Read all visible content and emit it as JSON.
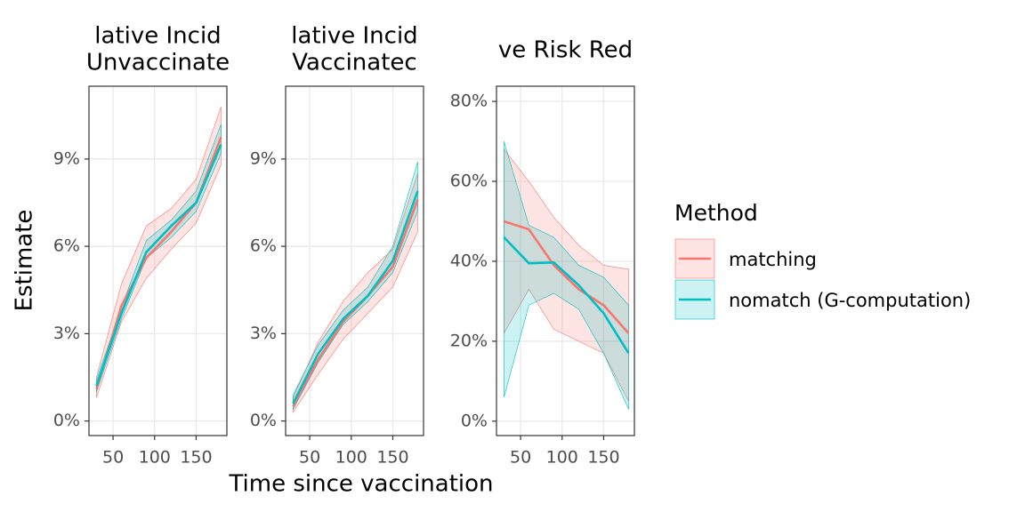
{
  "chart_data": [
    {
      "type": "line",
      "title": [
        "lative Incid",
        "Unvaccinate"
      ],
      "x": [
        30,
        60,
        90,
        120,
        150,
        180
      ],
      "xlim": [
        21,
        187
      ],
      "xticks": [
        50,
        100,
        150
      ],
      "ylim": [
        -0.5,
        11.5
      ],
      "yticks": [
        {
          "value": 0,
          "label": "0%"
        },
        {
          "value": 3,
          "label": "3%"
        },
        {
          "value": 6,
          "label": "6%"
        },
        {
          "value": 9,
          "label": "9%"
        }
      ],
      "grid": true,
      "series": [
        {
          "color": "#F8766D",
          "values": [
            1.1,
            3.95,
            5.6,
            6.5,
            7.5,
            9.75
          ],
          "lower": [
            0.8,
            3.4,
            4.9,
            5.9,
            6.8,
            8.8
          ],
          "upper": [
            1.5,
            4.7,
            6.7,
            7.3,
            8.3,
            10.8
          ]
        },
        {
          "color": "#00BFC4",
          "values": [
            1.2,
            3.7,
            5.8,
            6.7,
            7.5,
            9.5
          ],
          "lower": [
            1.0,
            3.5,
            5.6,
            6.3,
            7.2,
            9.2
          ],
          "upper": [
            1.4,
            3.9,
            6.2,
            6.9,
            7.9,
            10.2
          ]
        }
      ]
    },
    {
      "type": "line",
      "title": [
        "lative Incid",
        "Vaccinatec"
      ],
      "x": [
        30,
        60,
        90,
        120,
        150,
        180
      ],
      "xlim": [
        21,
        187
      ],
      "xticks": [
        50,
        100,
        150
      ],
      "ylim": [
        -0.5,
        11.5
      ],
      "yticks": [
        {
          "value": 0,
          "label": "0%"
        },
        {
          "value": 3,
          "label": "3%"
        },
        {
          "value": 6,
          "label": "6%"
        },
        {
          "value": 9,
          "label": "9%"
        }
      ],
      "grid": true,
      "series": [
        {
          "color": "#F8766D",
          "values": [
            0.5,
            2.1,
            3.4,
            4.3,
            5.3,
            7.6
          ],
          "lower": [
            0.3,
            1.6,
            2.8,
            3.7,
            4.6,
            6.5
          ],
          "upper": [
            0.8,
            2.7,
            4.1,
            5.1,
            5.9,
            8.5
          ]
        },
        {
          "color": "#00BFC4",
          "values": [
            0.6,
            2.3,
            3.5,
            4.3,
            5.5,
            7.9
          ],
          "lower": [
            0.4,
            2.0,
            3.3,
            4.1,
            5.1,
            7.2
          ],
          "upper": [
            0.9,
            2.6,
            3.8,
            4.6,
            6.0,
            8.9
          ]
        }
      ]
    },
    {
      "type": "line",
      "title": [
        "ve Risk Red"
      ],
      "x": [
        30,
        60,
        90,
        120,
        150,
        180
      ],
      "xlim": [
        21,
        187
      ],
      "xticks": [
        50,
        100,
        150
      ],
      "ylim": [
        -3.6,
        83.8
      ],
      "yticks": [
        {
          "value": 0,
          "label": "0%"
        },
        {
          "value": 20,
          "label": "20%"
        },
        {
          "value": 40,
          "label": "40%"
        },
        {
          "value": 60,
          "label": "60%"
        },
        {
          "value": 80,
          "label": "80%"
        }
      ],
      "grid": true,
      "series": [
        {
          "color": "#F8766D",
          "values": [
            50,
            48,
            39,
            33,
            29,
            22
          ],
          "lower": [
            22,
            33,
            23,
            20,
            17,
            5
          ],
          "upper": [
            68,
            60,
            51,
            44,
            39,
            38
          ]
        },
        {
          "color": "#00BFC4",
          "values": [
            46,
            39.5,
            39.7,
            34,
            27,
            17
          ],
          "lower": [
            6,
            29,
            32,
            28,
            17,
            3
          ],
          "upper": [
            70,
            49,
            46,
            39,
            36,
            29
          ]
        }
      ]
    }
  ],
  "x_label": "Time since vaccination",
  "y_label": "Estimate",
  "legend": {
    "title": "Method",
    "entries": [
      {
        "name": "matching",
        "color": "#F8766D"
      },
      {
        "name": "nomatch (G-computation)",
        "color": "#00BFC4"
      }
    ]
  }
}
